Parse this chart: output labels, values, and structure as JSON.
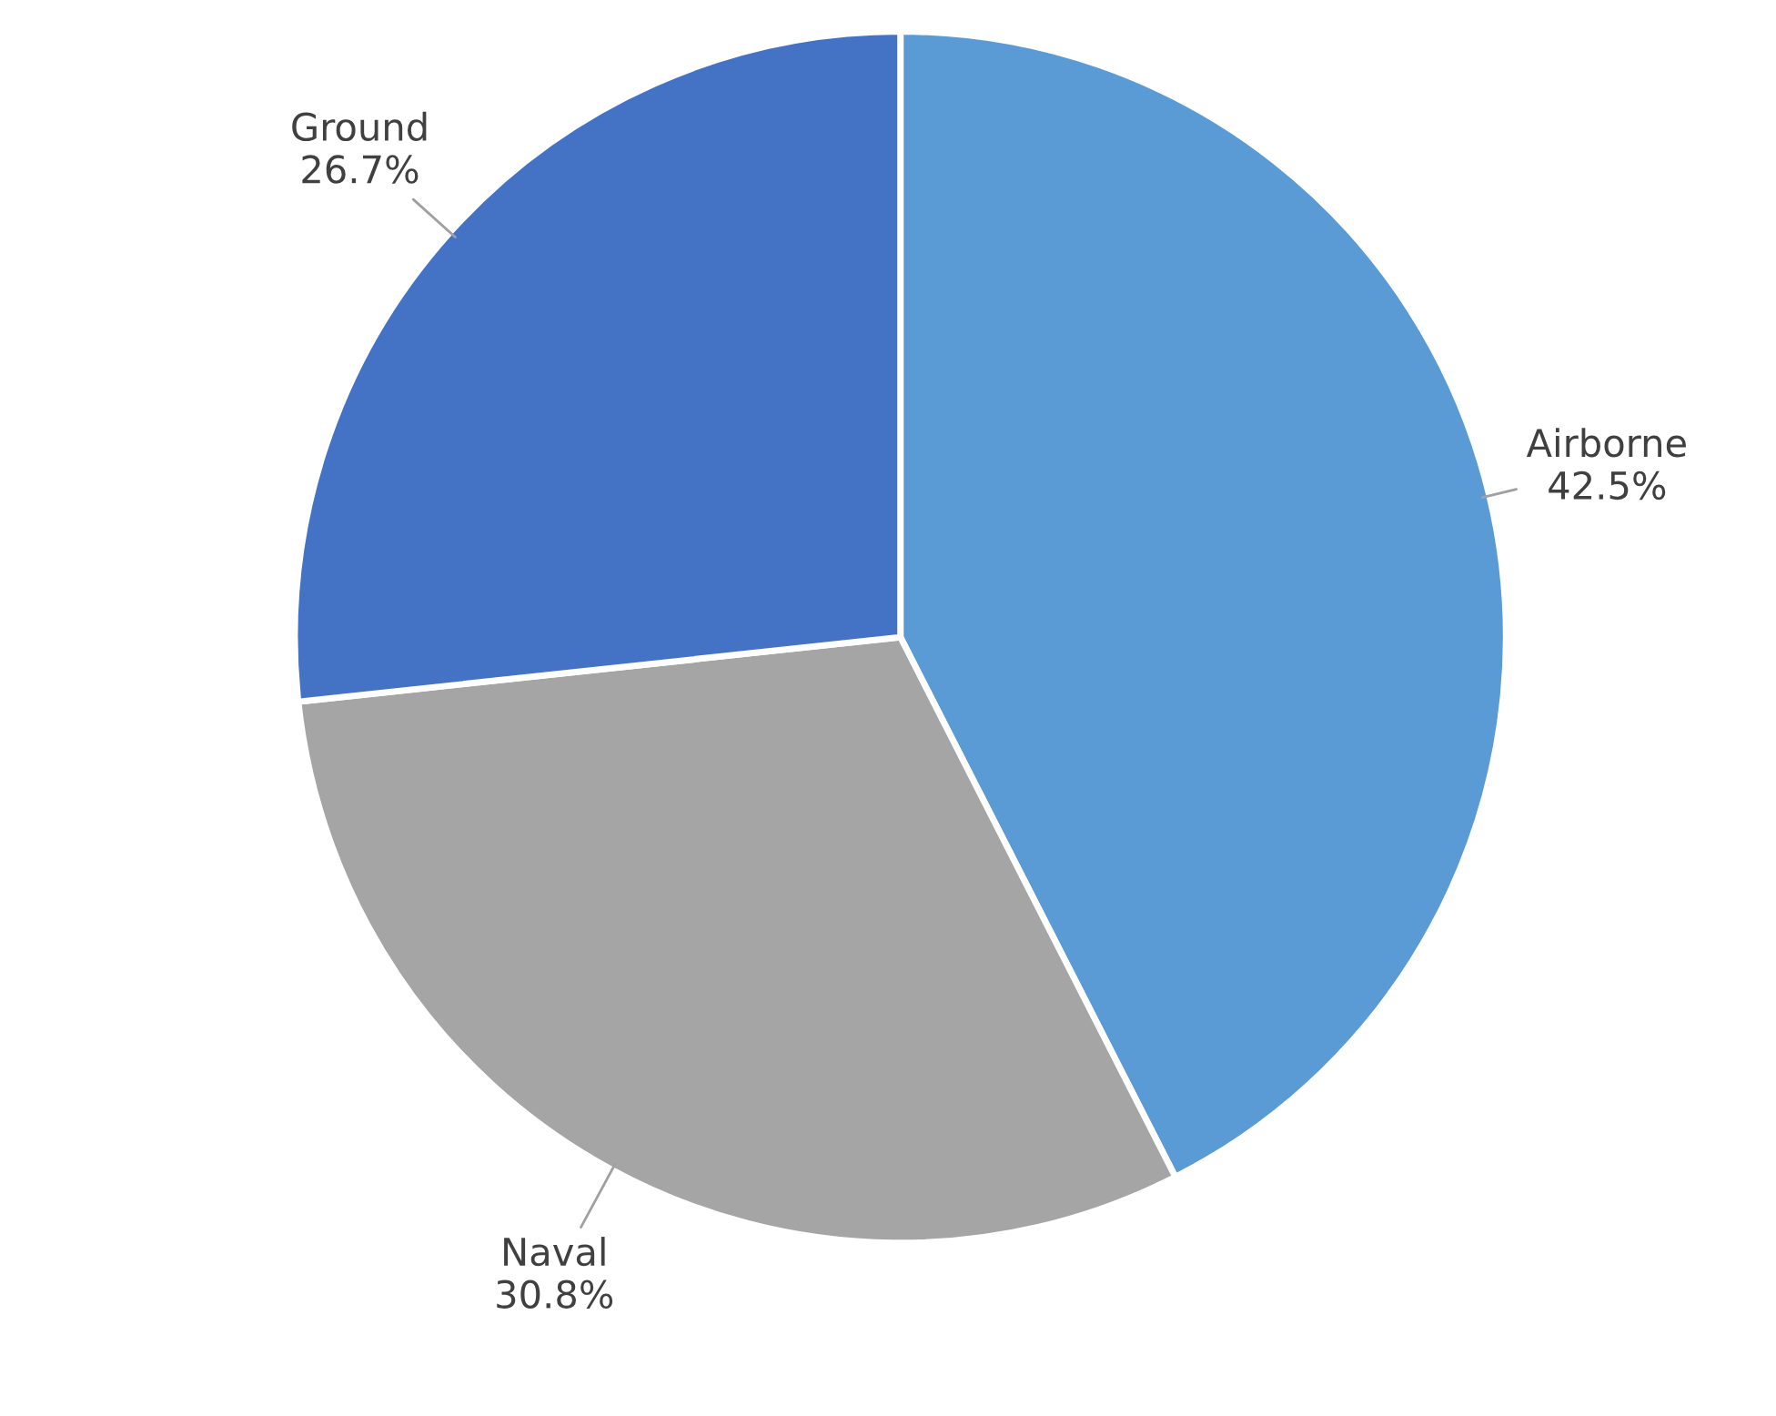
{
  "chart_data": {
    "type": "pie",
    "categories": [
      "Airborne",
      "Naval",
      "Ground"
    ],
    "values": [
      42.5,
      30.8,
      26.7
    ],
    "value_labels": [
      "42.5%",
      "30.8%",
      "26.7%"
    ],
    "colors": [
      "#5b9bd5",
      "#a5a5a5",
      "#4472c4"
    ]
  }
}
